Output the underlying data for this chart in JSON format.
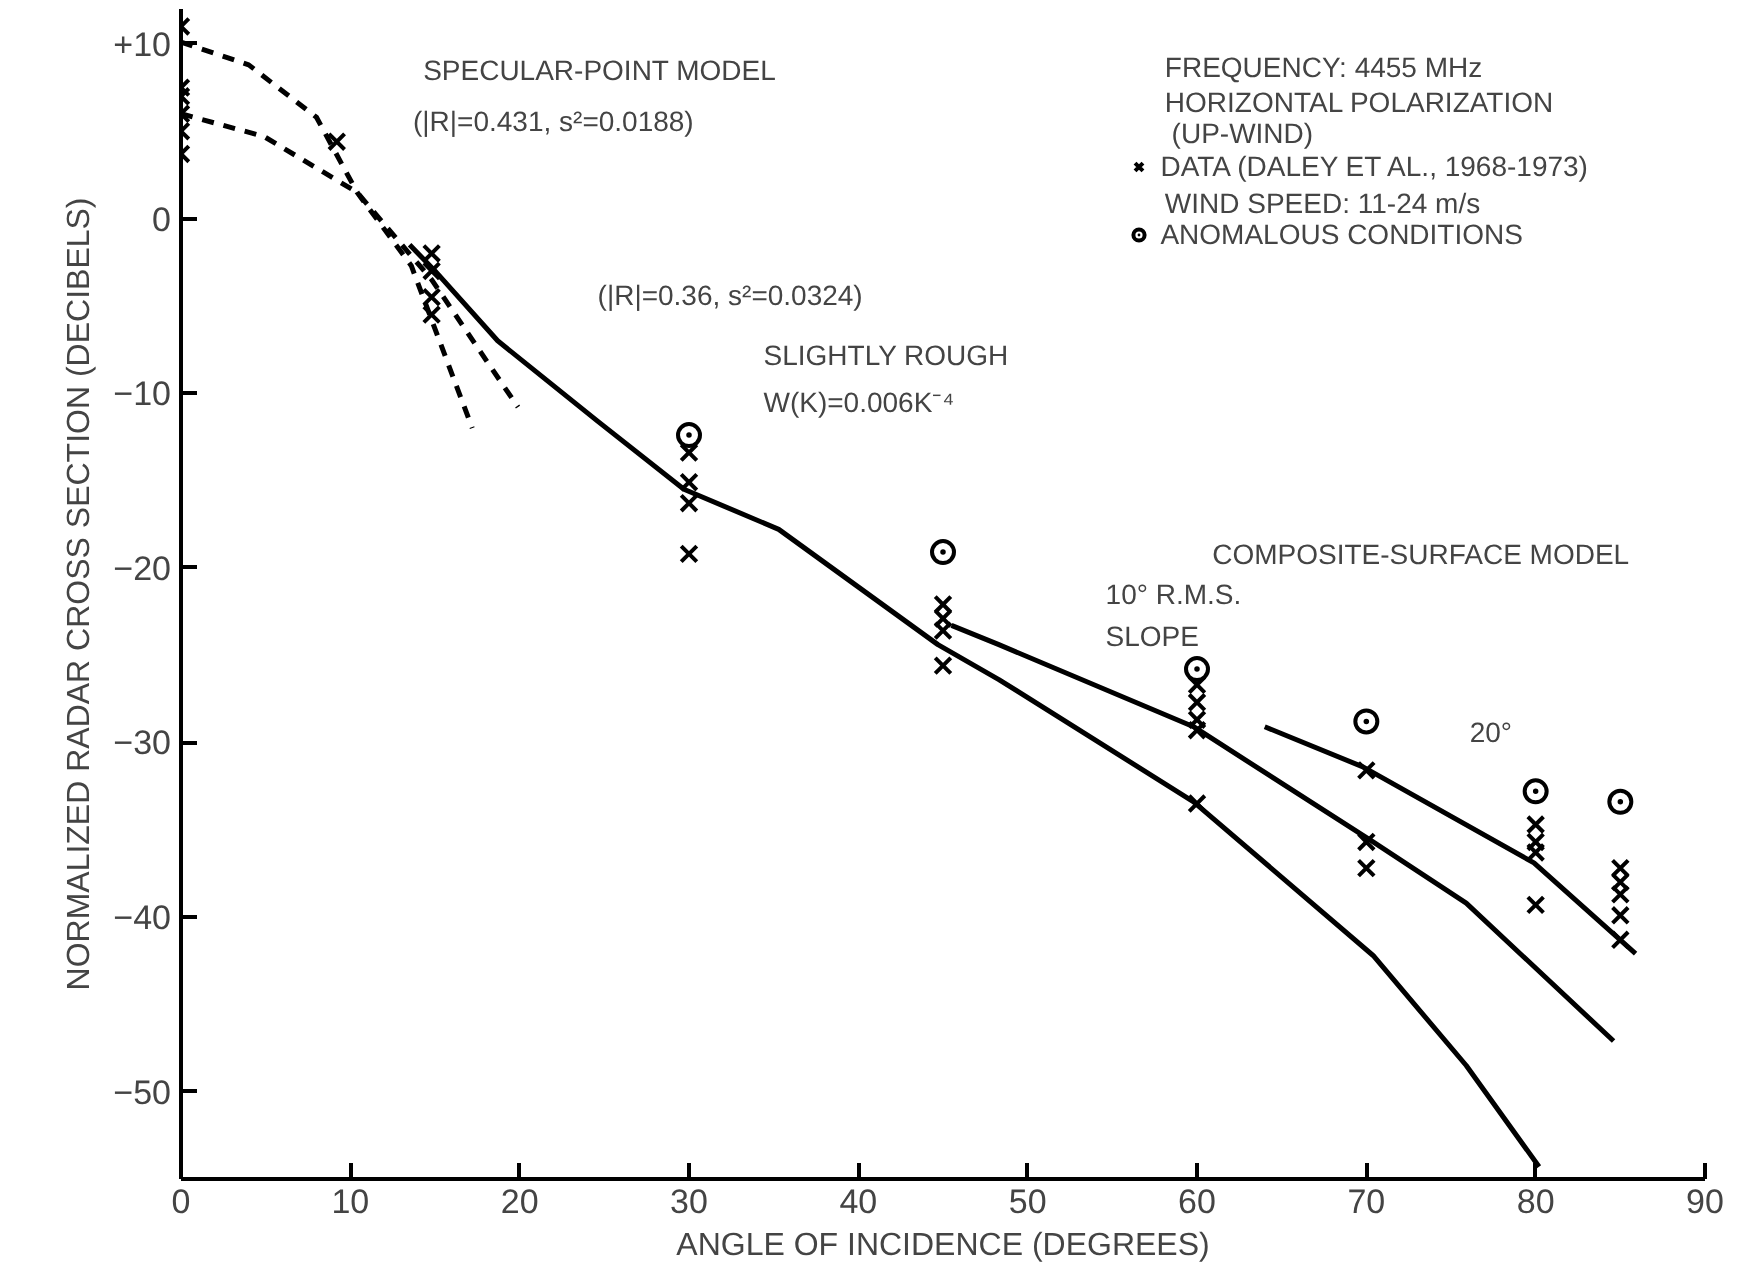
{
  "chart_data": {
    "type": "line",
    "xlabel": "ANGLE OF INCIDENCE (DEGREES)",
    "ylabel": "NORMALIZED RADAR CROSS SECTION (DECIBELS)",
    "xlim": [
      0,
      90
    ],
    "ylim": [
      -55,
      12
    ],
    "xticks": [
      0,
      10,
      20,
      30,
      40,
      50,
      60,
      70,
      80,
      90
    ],
    "yticks": [
      {
        "value": 10,
        "label": "+10"
      },
      0,
      -10,
      -20,
      -30,
      -40,
      -50
    ],
    "grid": false,
    "legend": "top right",
    "series": [
      {
        "line_style": "dashed",
        "color": "#000000",
        "x": [
          0,
          4,
          8,
          10.4,
          13.6,
          17.2
        ],
        "values": [
          10.1,
          8.8,
          5.8,
          1.5,
          -2.7,
          -12
        ]
      },
      {
        "line_style": "dashed",
        "color": "#000000",
        "x": [
          0,
          4.9,
          10.4,
          14.8,
          19.9
        ],
        "values": [
          6.0,
          4.7,
          1.5,
          -3.5,
          -10.8
        ]
      },
      {
        "line_style": "solid",
        "color": "#000000",
        "x": [
          13.5,
          15,
          18.7,
          24.6,
          29.7,
          35.3,
          44.7,
          48.3,
          59.8,
          70.4,
          75.9,
          80.2
        ],
        "values": [
          -1.5,
          -3,
          -7,
          -11.6,
          -15.5,
          -17.8,
          -24.4,
          -26.4,
          -33.4,
          -42.2,
          -48.5,
          -54.3
        ]
      },
      {
        "line_style": "solid",
        "color": "#000000",
        "x": [
          45.5,
          48.3,
          59.8,
          70.4,
          75.9,
          84.6
        ],
        "values": [
          -23.3,
          -24.4,
          -29.1,
          -35.7,
          -39.2,
          -47.1
        ]
      },
      {
        "line_style": "solid",
        "color": "#000000",
        "x": [
          64,
          69.8,
          79.9,
          85.9
        ],
        "values": [
          -29.1,
          -31.4,
          -36.9,
          -42.1
        ]
      },
      {
        "type": "scatter",
        "marker": "cross",
        "name": "DATA (DALEY ET AL., 1968-1973)",
        "color": "#000000",
        "x": [
          0,
          0,
          0,
          0,
          0,
          0,
          9.2,
          14.8,
          14.8,
          14.8,
          14.8,
          30,
          30,
          30,
          30,
          45,
          45,
          45,
          45,
          60,
          60,
          60,
          60,
          60,
          70,
          70,
          70,
          80,
          80,
          80,
          80,
          85,
          85,
          85,
          85,
          85
        ],
        "values": [
          11,
          7.5,
          7,
          6,
          5,
          3.7,
          4.4,
          -2,
          -3,
          -4.5,
          -5.5,
          -13.4,
          -15.1,
          -16.3,
          -19.2,
          -22.1,
          -22.9,
          -23.6,
          -25.6,
          -26.7,
          -27.7,
          -28.7,
          -29.3,
          -33.5,
          -31.6,
          -35.7,
          -37.2,
          -34.7,
          -35.7,
          -36.3,
          -39.3,
          -37.2,
          -38,
          -38.7,
          -39.9,
          -41.3
        ]
      },
      {
        "type": "scatter",
        "marker": "circle",
        "name": "ANOMALOUS CONDITIONS",
        "color": "#000000",
        "x": [
          30,
          45,
          60,
          70,
          80,
          85
        ],
        "values": [
          -12.4,
          -19.1,
          -25.8,
          -28.8,
          -32.8,
          -33.4
        ]
      }
    ],
    "annotations": [
      "FREQUENCY: 4455 MHz",
      "HORIZONTAL POLARIZATION",
      "(UP-WIND)",
      "WIND SPEED: 11-24 m/s",
      "SPECULAR-POINT MODEL",
      "(|R|=0.431, s²=0.0188)",
      "(|R|=0.36, s²=0.0324)",
      "SLIGHTLY ROUGH",
      "W(K)=0.006K⁻⁴",
      "COMPOSITE-SURFACE MODEL",
      "10° R.M.S.",
      "SLOPE",
      "20°"
    ]
  }
}
